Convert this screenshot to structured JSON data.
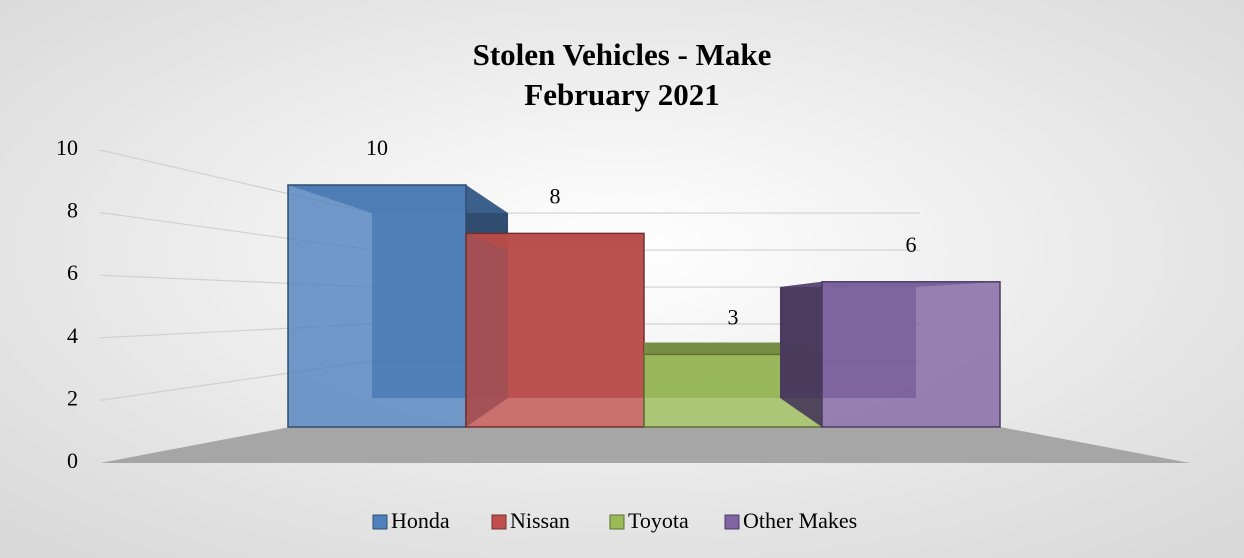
{
  "chart_data": {
    "type": "bar",
    "title": "Stolen Vehicles - Make",
    "subtitle": "February 2021",
    "categories": [
      null
    ],
    "series": [
      {
        "name": "Honda",
        "color": "#4f81bd",
        "values": [
          10
        ]
      },
      {
        "name": "Nissan",
        "color": "#c0504d",
        "values": [
          8
        ]
      },
      {
        "name": "Toyota",
        "color": "#9bbb59",
        "values": [
          3
        ]
      },
      {
        "name": "Other Makes",
        "color": "#8064a2",
        "values": [
          6
        ]
      }
    ],
    "ylim": [
      0,
      10
    ],
    "yticks": [
      0,
      2,
      4,
      6,
      8,
      10
    ],
    "grid": true,
    "legend": "bottom"
  }
}
